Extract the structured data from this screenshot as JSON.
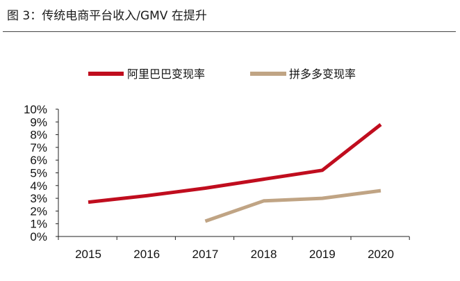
{
  "caption": "图 3：传统电商平台收入/GMV 在提升",
  "chart_data": {
    "type": "line",
    "title": "",
    "xlabel": "",
    "ylabel": "",
    "categories": [
      "2015",
      "2016",
      "2017",
      "2018",
      "2019",
      "2020"
    ],
    "ylim": [
      0,
      10
    ],
    "yticks": [
      "0%",
      "1%",
      "2%",
      "3%",
      "4%",
      "5%",
      "6%",
      "7%",
      "8%",
      "9%",
      "10%"
    ],
    "grid": false,
    "legend_position": "top",
    "series": [
      {
        "name": "阿里巴巴变现率",
        "color": "#C00D1E",
        "values": [
          2.7,
          3.2,
          3.8,
          4.5,
          5.2,
          8.8
        ]
      },
      {
        "name": "拼多多变现率",
        "color": "#C0A484",
        "values": [
          null,
          null,
          1.2,
          2.8,
          3.0,
          3.6
        ]
      }
    ]
  }
}
